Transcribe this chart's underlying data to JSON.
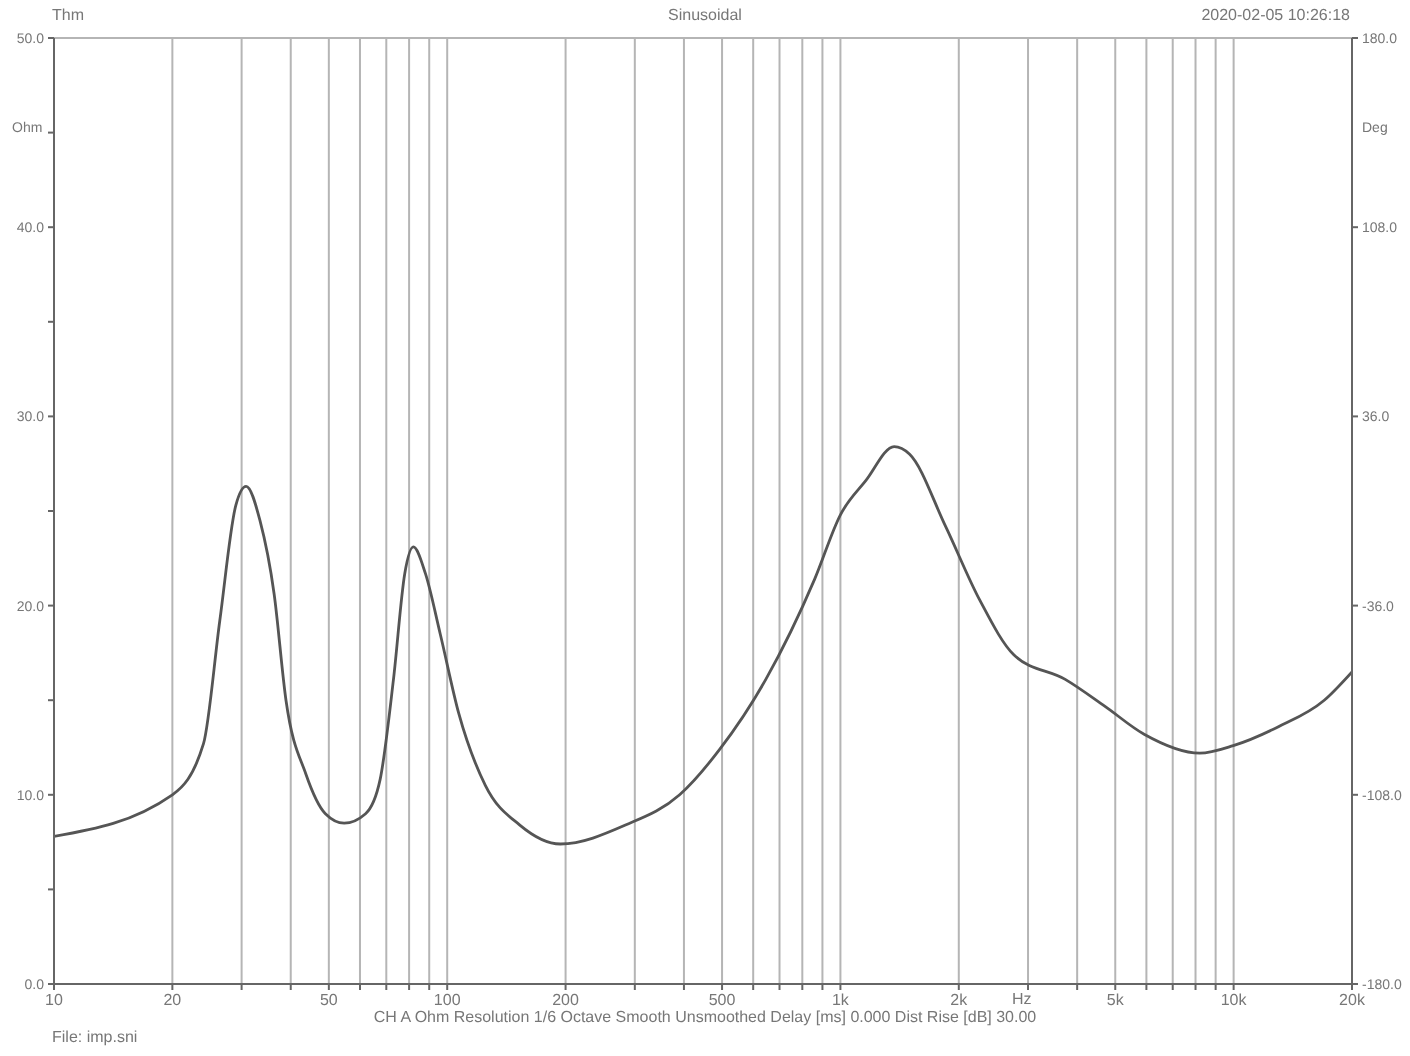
{
  "chart_data": {
    "type": "line",
    "title": "Sinusoidal",
    "xlabel": "Hz",
    "ylabel": "Ohm",
    "y2label": "Deg",
    "annotations": [
      "Thm",
      "2020-02-05 10:26:18",
      "CH A  Ohm  Resolution 1/6 Octave  Smooth Unsmoothed  Delay [ms] 0.000  Dist Rise [dB] 30.00",
      "File: imp.sni"
    ],
    "log": "x",
    "grid": true,
    "marker": "none",
    "line_style": "solid",
    "xlim": [
      10,
      20000
    ],
    "xticks": [
      10,
      20,
      {
        "value": 30,
        "label": null
      },
      {
        "value": 40,
        "label": null
      },
      50,
      {
        "value": 60,
        "label": null
      },
      {
        "value": 70,
        "label": null
      },
      {
        "value": 80,
        "label": null
      },
      {
        "value": 90,
        "label": null
      },
      100,
      200,
      {
        "value": 300,
        "label": null
      },
      {
        "value": 400,
        "label": null
      },
      500,
      {
        "value": 600,
        "label": null
      },
      {
        "value": 700,
        "label": null
      },
      {
        "value": 800,
        "label": null
      },
      {
        "value": 900,
        "label": null
      },
      {
        "value": 1000,
        "label": "1k"
      },
      {
        "value": 2000,
        "label": "2k"
      },
      {
        "value": 3000,
        "label": null
      },
      {
        "value": 4000,
        "label": null
      },
      {
        "value": 5000,
        "label": "5k"
      },
      {
        "value": 6000,
        "label": null
      },
      {
        "value": 7000,
        "label": null
      },
      {
        "value": 8000,
        "label": null
      },
      {
        "value": 9000,
        "label": null
      },
      {
        "value": 10000,
        "label": "10k"
      },
      {
        "value": 20000,
        "label": "20k"
      }
    ],
    "ylim": [
      0,
      50
    ],
    "yticks": [
      {
        "value": 0,
        "label": "0.0"
      },
      {
        "value": 5,
        "label": null
      },
      {
        "value": 10,
        "label": "10.0"
      },
      {
        "value": 15,
        "label": null
      },
      {
        "value": 20,
        "label": "20.0"
      },
      {
        "value": 25,
        "label": null
      },
      {
        "value": 30,
        "label": "30.0"
      },
      {
        "value": 35,
        "label": null
      },
      {
        "value": 40,
        "label": "40.0"
      },
      {
        "value": 45,
        "label": null
      },
      {
        "value": 50,
        "label": "50.0"
      }
    ],
    "y2lim": [
      -180,
      180
    ],
    "y2ticks": [
      {
        "value": -180,
        "label": "-180.0"
      },
      {
        "value": -108,
        "label": "-108.0"
      },
      {
        "value": -36,
        "label": "-36.0"
      },
      {
        "value": 36,
        "label": "36.0"
      },
      {
        "value": 108,
        "label": "108.0"
      },
      {
        "value": 180,
        "label": "180.0"
      }
    ],
    "series": [
      {
        "color": "#555555",
        "x": [
          10,
          20,
          24,
          26.4,
          29,
          30.8,
          33.4,
          36.3,
          38.9,
          43.7,
          49,
          54.7,
          62,
          67.5,
          73,
          78,
          82,
          88,
          96,
          107,
          125,
          153,
          194,
          284,
          390,
          493,
          646,
          860,
          1000,
          1160,
          1370,
          1500,
          1850,
          2260,
          2760,
          3730,
          4690,
          5920,
          8200,
          9980,
          13000,
          17000,
          20000
        ],
        "values": [
          7.8,
          10.0,
          12.7,
          19.2,
          25.3,
          26.3,
          24.5,
          20.6,
          15.0,
          11.1,
          9.0,
          8.5,
          9.0,
          10.8,
          16.1,
          21.7,
          23.1,
          21.7,
          18.5,
          14.3,
          10.5,
          8.4,
          7.4,
          8.4,
          10.0,
          12.4,
          16.1,
          21.4,
          24.8,
          26.6,
          28.4,
          28.0,
          24.2,
          20.3,
          17.4,
          16.1,
          14.7,
          13.2,
          12.2,
          12.6,
          13.6,
          15.0,
          16.5
        ]
      }
    ]
  }
}
